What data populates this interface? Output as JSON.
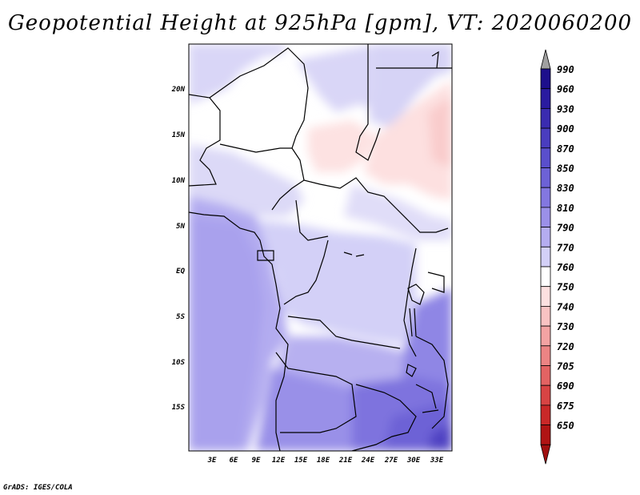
{
  "title": "Geopotential Height at 925hPa [gpm], VT: 2020060200",
  "credit": "GrADS: IGES/COLA",
  "map": {
    "lon_labels": [
      "3E",
      "6E",
      "9E",
      "12E",
      "15E",
      "18E",
      "21E",
      "24E",
      "27E",
      "30E",
      "33E"
    ],
    "lat_labels": [
      "20N",
      "15N",
      "10N",
      "5N",
      "EQ",
      "5S",
      "10S",
      "15S"
    ]
  },
  "colorbar": {
    "levels": [
      "990",
      "960",
      "930",
      "900",
      "870",
      "850",
      "830",
      "810",
      "790",
      "770",
      "760",
      "750",
      "740",
      "730",
      "720",
      "705",
      "690",
      "675",
      "650"
    ],
    "colors": [
      "#1d0f8c",
      "#2a1ba0",
      "#3a2bb0",
      "#4a3dbf",
      "#5a4fcc",
      "#6d62d6",
      "#8377e0",
      "#9b90e8",
      "#b5adf0",
      "#d3d0f7",
      "#ffffff",
      "#fde0e0",
      "#f9c3c3",
      "#f3a3a3",
      "#ec8484",
      "#e36363",
      "#d84444",
      "#c92828",
      "#b01414"
    ],
    "top_arrow_color": "#a0a0a0",
    "bottom_arrow_color": "#a01010"
  }
}
